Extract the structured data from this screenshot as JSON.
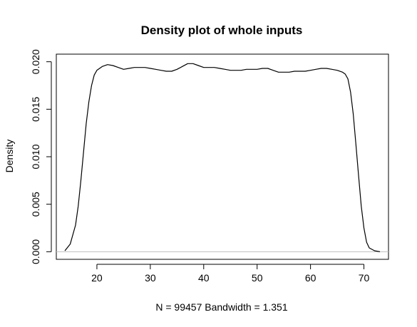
{
  "chart_data": {
    "type": "line",
    "title": "Density plot of whole inputs",
    "xlabel": "N = 99457   Bandwidth = 1.351",
    "ylabel": "Density",
    "xlim": [
      12.4,
      74.6
    ],
    "ylim": [
      -0.0008,
      0.0208
    ],
    "x_ticks": [
      20,
      30,
      40,
      50,
      60,
      70
    ],
    "x_tick_labels": [
      "20",
      "30",
      "40",
      "50",
      "60",
      "70"
    ],
    "y_ticks": [
      0.0,
      0.005,
      0.01,
      0.015,
      0.02
    ],
    "y_tick_labels": [
      "0.000",
      "0.005",
      "0.010",
      "0.015",
      "0.020"
    ],
    "baseline": 0,
    "grid": false,
    "legend": "none",
    "colors": {
      "line": "#000000",
      "baseline": "#bebebe",
      "axis": "#000000"
    },
    "series": [
      {
        "x": [
          14,
          15,
          16,
          16.5,
          17,
          17.5,
          18,
          18.5,
          19,
          19.5,
          20,
          20.5,
          21,
          22,
          23,
          24,
          25,
          26,
          27,
          28,
          29,
          30,
          31,
          32,
          33,
          34,
          35,
          36,
          37,
          38,
          39,
          40,
          41,
          42,
          43,
          44,
          45,
          46,
          47,
          48,
          49,
          50,
          51,
          52,
          53,
          54,
          55,
          56,
          57,
          58,
          59,
          60,
          61,
          62,
          63,
          64,
          65,
          66,
          66.5,
          67,
          67.5,
          68,
          68.5,
          69,
          69.5,
          70,
          70.5,
          71,
          72,
          73
        ],
        "y": [
          0.0001,
          0.0008,
          0.0028,
          0.0048,
          0.0075,
          0.0105,
          0.0135,
          0.0158,
          0.0175,
          0.0186,
          0.0191,
          0.0193,
          0.0195,
          0.0197,
          0.0196,
          0.0194,
          0.0192,
          0.0193,
          0.0194,
          0.0194,
          0.0194,
          0.0193,
          0.0192,
          0.0191,
          0.019,
          0.019,
          0.0192,
          0.0195,
          0.0198,
          0.0198,
          0.0196,
          0.0194,
          0.0194,
          0.0194,
          0.0193,
          0.0192,
          0.0191,
          0.0191,
          0.0191,
          0.0192,
          0.0192,
          0.0192,
          0.0193,
          0.0193,
          0.0191,
          0.0189,
          0.0189,
          0.0189,
          0.019,
          0.019,
          0.019,
          0.0191,
          0.0192,
          0.0193,
          0.0193,
          0.0192,
          0.0191,
          0.0189,
          0.0187,
          0.0182,
          0.0168,
          0.0145,
          0.0113,
          0.008,
          0.0048,
          0.0025,
          0.001,
          0.0004,
          0.0001,
          0.0
        ]
      }
    ]
  }
}
